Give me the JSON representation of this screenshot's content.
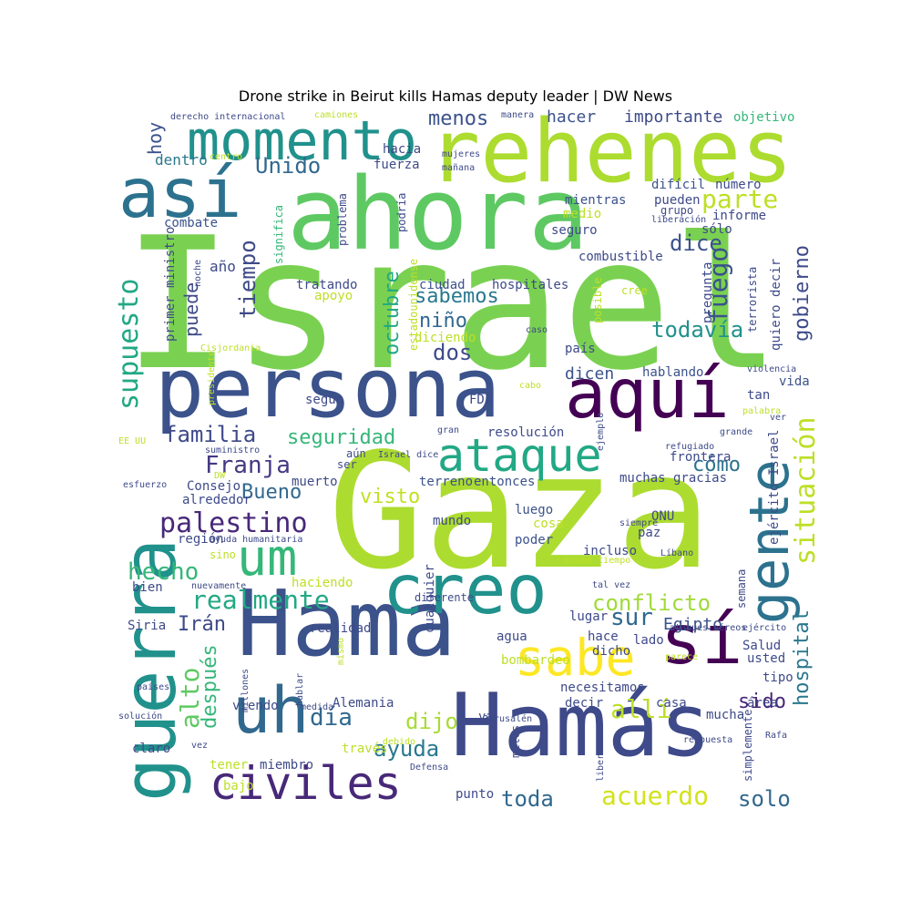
{
  "title": "Drone strike in Beirut kills Hamas deputy leader | DW News",
  "words": [
    {
      "text": "Israel",
      "color": "#7ad151"
    },
    {
      "text": "Gaza",
      "color": "#addc30"
    },
    {
      "text": "ahora",
      "color": "#5ec962"
    },
    {
      "text": "rehenes",
      "color": "#addc30"
    },
    {
      "text": "persona",
      "color": "#3b528b"
    },
    {
      "text": "Hama",
      "color": "#3b528b"
    },
    {
      "text": "Hamás",
      "color": "#3e4a89"
    },
    {
      "text": "momento",
      "color": "#21918c"
    },
    {
      "text": "así",
      "color": "#2c728e"
    },
    {
      "text": "guerra",
      "color": "#21918c"
    },
    {
      "text": "aquí",
      "color": "#440154"
    },
    {
      "text": "creo",
      "color": "#21918c"
    },
    {
      "text": "uh",
      "color": "#31688e"
    },
    {
      "text": "sí",
      "color": "#440154"
    },
    {
      "text": "gente",
      "color": "#2c728e"
    },
    {
      "text": "ataque",
      "color": "#22a884"
    },
    {
      "text": "civiles",
      "color": "#482878"
    },
    {
      "text": "um",
      "color": "#35b779"
    },
    {
      "text": "sabe",
      "color": "#fde725"
    },
    {
      "text": "palestino",
      "color": "#482878"
    },
    {
      "text": "situación",
      "color": "#bddf26"
    },
    {
      "text": "supuesto",
      "color": "#22a884"
    },
    {
      "text": "realmente",
      "color": "#22a884"
    },
    {
      "text": "parte",
      "color": "#bddf26"
    },
    {
      "text": "Unido",
      "color": "#31688e"
    },
    {
      "text": "tiempo",
      "color": "#3e4a89"
    },
    {
      "text": "fuego",
      "color": "#3b528b"
    },
    {
      "text": "gobierno",
      "color": "#3e4a89"
    },
    {
      "text": "todavía",
      "color": "#21918c"
    },
    {
      "text": "hospital",
      "color": "#2a788e"
    },
    {
      "text": "acuerdo",
      "color": "#d2e21b"
    },
    {
      "text": "seguridad",
      "color": "#35b779"
    },
    {
      "text": "familia",
      "color": "#3e4a89"
    },
    {
      "text": "Franja",
      "color": "#443983"
    },
    {
      "text": "conflicto",
      "color": "#a0da39"
    },
    {
      "text": "hecho",
      "color": "#35b779"
    },
    {
      "text": "menos",
      "color": "#3b528b"
    },
    {
      "text": "dice",
      "color": "#3b528b"
    },
    {
      "text": "sabemos",
      "color": "#2a788e"
    },
    {
      "text": "norte",
      "color": "#3e4a89"
    },
    {
      "text": "niño",
      "color": "#31688e"
    },
    {
      "text": "octubre",
      "color": "#22a884"
    },
    {
      "text": "visto",
      "color": "#c2df23"
    },
    {
      "text": "dos",
      "color": "#3e4a89"
    },
    {
      "text": "Bueno",
      "color": "#31688e"
    },
    {
      "text": "sur",
      "color": "#31688e"
    },
    {
      "text": "allí",
      "color": "#bddf26"
    },
    {
      "text": "día",
      "color": "#31688e"
    },
    {
      "text": "dijo",
      "color": "#a8db34"
    },
    {
      "text": "ayuda",
      "color": "#2a788e"
    },
    {
      "text": "toda",
      "color": "#31688e"
    },
    {
      "text": "solo",
      "color": "#31688e"
    },
    {
      "text": "alto",
      "color": "#5ec962"
    },
    {
      "text": "después",
      "color": "#35b779"
    },
    {
      "text": "sido",
      "color": "#482878"
    },
    {
      "text": "cómo",
      "color": "#2c728e"
    },
    {
      "text": "puede",
      "color": "#3e4a89"
    },
    {
      "text": "hoy",
      "color": "#3b528b"
    },
    {
      "text": "hacer",
      "color": "#3b528b"
    },
    {
      "text": "importante",
      "color": "#3e4a89"
    },
    {
      "text": "Irán",
      "color": "#3e4a89"
    },
    {
      "text": "Egipto",
      "color": "#3b528b"
    },
    {
      "text": "año",
      "color": "#3e4a89"
    },
    {
      "text": "dentro",
      "color": "#2a788e"
    },
    {
      "text": "objetivo",
      "color": "#35b779"
    },
    {
      "text": "combate",
      "color": "#3b528b"
    },
    {
      "text": "significa",
      "color": "#35b779"
    },
    {
      "text": "tratando",
      "color": "#3e4a89"
    },
    {
      "text": "ciudad",
      "color": "#3b528b"
    },
    {
      "text": "hospitales",
      "color": "#3e4a89"
    },
    {
      "text": "combustible",
      "color": "#3e4a89"
    },
    {
      "text": "pueden",
      "color": "#3e4a89"
    },
    {
      "text": "mientras",
      "color": "#3b528b"
    },
    {
      "text": "difícil",
      "color": "#3b528b"
    },
    {
      "text": "número",
      "color": "#3e4a89"
    },
    {
      "text": "grupo",
      "color": "#3e4a89"
    },
    {
      "text": "informe",
      "color": "#3e4a89"
    },
    {
      "text": "seguro",
      "color": "#3e4a89"
    },
    {
      "text": "medio",
      "color": "#bddf26"
    },
    {
      "text": "problema",
      "color": "#3e4a89"
    },
    {
      "text": "fuerza",
      "color": "#3e4a89"
    },
    {
      "text": "hacia",
      "color": "#3e4a89"
    },
    {
      "text": "mujeres",
      "color": "#3e4a89"
    },
    {
      "text": "mañana",
      "color": "#3e4a89"
    },
    {
      "text": "sólo",
      "color": "#3e4a89"
    },
    {
      "text": "dicen",
      "color": "#3b528b"
    },
    {
      "text": "hablando",
      "color": "#3b528b"
    },
    {
      "text": "según",
      "color": "#3e4a89"
    },
    {
      "text": "FDI",
      "color": "#3e4a89"
    },
    {
      "text": "tan",
      "color": "#3e4a89"
    },
    {
      "text": "vida",
      "color": "#3b528b"
    },
    {
      "text": "resolución",
      "color": "#3e4a89"
    },
    {
      "text": "frontera",
      "color": "#3e4a89"
    },
    {
      "text": "terreno",
      "color": "#3b528b"
    },
    {
      "text": "entonces",
      "color": "#3b528b"
    },
    {
      "text": "muchas gracias",
      "color": "#3e4a89"
    },
    {
      "text": "muerto",
      "color": "#3e4a89"
    },
    {
      "text": "Consejo",
      "color": "#3e4a89"
    },
    {
      "text": "alrededor",
      "color": "#3e4a89"
    },
    {
      "text": "luego",
      "color": "#3b528b"
    },
    {
      "text": "cosa",
      "color": "#bddf26"
    },
    {
      "text": "mundo",
      "color": "#3e4a89"
    },
    {
      "text": "ONU",
      "color": "#3e4a89"
    },
    {
      "text": "paz",
      "color": "#3e4a89"
    },
    {
      "text": "poder",
      "color": "#3b528b"
    },
    {
      "text": "incluso",
      "color": "#3e4a89"
    },
    {
      "text": "región",
      "color": "#3e4a89"
    },
    {
      "text": "sino",
      "color": "#bddf26"
    },
    {
      "text": "haciendo",
      "color": "#bddf26"
    },
    {
      "text": "diferente",
      "color": "#3e4a89"
    },
    {
      "text": "bien",
      "color": "#3e4a89"
    },
    {
      "text": "lugar",
      "color": "#3e4a89"
    },
    {
      "text": "hace",
      "color": "#3e4a89"
    },
    {
      "text": "dicho",
      "color": "#3e4a89"
    },
    {
      "text": "lado",
      "color": "#3e4a89"
    },
    {
      "text": "realidad",
      "color": "#3e4a89"
    },
    {
      "text": "agua",
      "color": "#3e4a89"
    },
    {
      "text": "Siria",
      "color": "#3e4a89"
    },
    {
      "text": "bombardeo",
      "color": "#bddf26"
    },
    {
      "text": "Salud",
      "color": "#3e4a89"
    },
    {
      "text": "usted",
      "color": "#3e4a89"
    },
    {
      "text": "tipo",
      "color": "#3e4a89"
    },
    {
      "text": "ejército",
      "color": "#3e4a89"
    },
    {
      "text": "necesitamos",
      "color": "#3e4a89"
    },
    {
      "text": "decir",
      "color": "#3e4a89"
    },
    {
      "text": "casa",
      "color": "#3e4a89"
    },
    {
      "text": "mucha",
      "color": "#3e4a89"
    },
    {
      "text": "área",
      "color": "#3e4a89"
    },
    {
      "text": "Alemania",
      "color": "#3e4a89"
    },
    {
      "text": "viendo",
      "color": "#3e4a89"
    },
    {
      "text": "va",
      "color": "#3e4a89"
    },
    {
      "text": "claro",
      "color": "#3e4a89"
    },
    {
      "text": "tener",
      "color": "#bddf26"
    },
    {
      "text": "miembro",
      "color": "#3e4a89"
    },
    {
      "text": "través",
      "color": "#bddf26"
    },
    {
      "text": "bajo",
      "color": "#bddf26"
    },
    {
      "text": "punto",
      "color": "#3e4a89"
    },
    {
      "text": "aún",
      "color": "#3e4a89"
    },
    {
      "text": "ser",
      "color": "#3e4a89"
    },
    {
      "text": "cree",
      "color": "#bddf26"
    },
    {
      "text": "apoyo",
      "color": "#bddf26"
    },
    {
      "text": "diciendo",
      "color": "#bddf26"
    },
    {
      "text": "país",
      "color": "#3e4a89"
    },
    {
      "text": "pregunta",
      "color": "#3e4a89"
    },
    {
      "text": "terrorista",
      "color": "#3e4a89"
    },
    {
      "text": "quiero decir",
      "color": "#3e4a89"
    },
    {
      "text": "primer ministro",
      "color": "#3e4a89"
    },
    {
      "text": "Naciones Unidas",
      "color": "#35b779"
    },
    {
      "text": "política",
      "color": "#35b779"
    },
    {
      "text": "estadounidense",
      "color": "#bddf26"
    },
    {
      "text": "cualquier",
      "color": "#3e4a89"
    },
    {
      "text": "posible",
      "color": "#bddf26"
    },
    {
      "text": "podría",
      "color": "#3e4a89"
    },
    {
      "text": "ejército Israel",
      "color": "#3e4a89"
    },
    {
      "text": "semana",
      "color": "#3e4a89"
    },
    {
      "text": "simplemente",
      "color": "#3e4a89"
    },
    {
      "text": "Israel dice",
      "color": "#3e4a89"
    },
    {
      "text": "miles",
      "color": "#3e4a89"
    },
    {
      "text": "liberación",
      "color": "#3e4a89"
    },
    {
      "text": "ataques aéreos",
      "color": "#3e4a89"
    },
    {
      "text": "derecho internacional",
      "color": "#3e4a89"
    },
    {
      "text": "camiones",
      "color": "#bddf26"
    },
    {
      "text": "manera",
      "color": "#3e4a89"
    },
    {
      "text": "centro",
      "color": "#bddf26"
    },
    {
      "text": "noche",
      "color": "#3e4a89"
    },
    {
      "text": "Cisjordania",
      "color": "#bddf26"
    },
    {
      "text": "presidente",
      "color": "#bddf26"
    },
    {
      "text": "EE UU",
      "color": "#bddf26"
    },
    {
      "text": "suministro",
      "color": "#3e4a89"
    },
    {
      "text": "esfuerzo",
      "color": "#3e4a89"
    },
    {
      "text": "DW",
      "color": "#bddf26"
    },
    {
      "text": "ayuda humanitaria",
      "color": "#3e4a89"
    },
    {
      "text": "nuevamente",
      "color": "#3e4a89"
    },
    {
      "text": "países",
      "color": "#3e4a89"
    },
    {
      "text": "solución",
      "color": "#3e4a89"
    },
    {
      "text": "vez",
      "color": "#3e4a89"
    },
    {
      "text": "millones",
      "color": "#3e4a89"
    },
    {
      "text": "hablar",
      "color": "#3e4a89"
    },
    {
      "text": "medida",
      "color": "#3e4a89"
    },
    {
      "text": "mismo",
      "color": "#bddf26"
    },
    {
      "text": "Jerusalén",
      "color": "#3e4a89"
    },
    {
      "text": "debido",
      "color": "#bddf26"
    },
    {
      "text": "Defensa",
      "color": "#3e4a89"
    },
    {
      "text": "liberado",
      "color": "#3e4a89"
    },
    {
      "text": "respuesta",
      "color": "#3e4a89"
    },
    {
      "text": "Rafa",
      "color": "#3e4a89"
    },
    {
      "text": "parece",
      "color": "#bddf26"
    },
    {
      "text": "Líbano",
      "color": "#3e4a89"
    },
    {
      "text": "tal vez",
      "color": "#3e4a89"
    },
    {
      "text": "mismo tiempo",
      "color": "#bddf26"
    },
    {
      "text": "siempre",
      "color": "#3e4a89"
    },
    {
      "text": "grande",
      "color": "#3e4a89"
    },
    {
      "text": "refugiado",
      "color": "#3e4a89"
    },
    {
      "text": "ejemplo",
      "color": "#3e4a89"
    },
    {
      "text": "violencia",
      "color": "#3e4a89"
    },
    {
      "text": "palabra",
      "color": "#bddf26"
    },
    {
      "text": "cabo",
      "color": "#bddf26"
    },
    {
      "text": "caso",
      "color": "#3e4a89"
    },
    {
      "text": "gran",
      "color": "#3e4a89"
    },
    {
      "text": "ver",
      "color": "#3e4a89"
    }
  ]
}
